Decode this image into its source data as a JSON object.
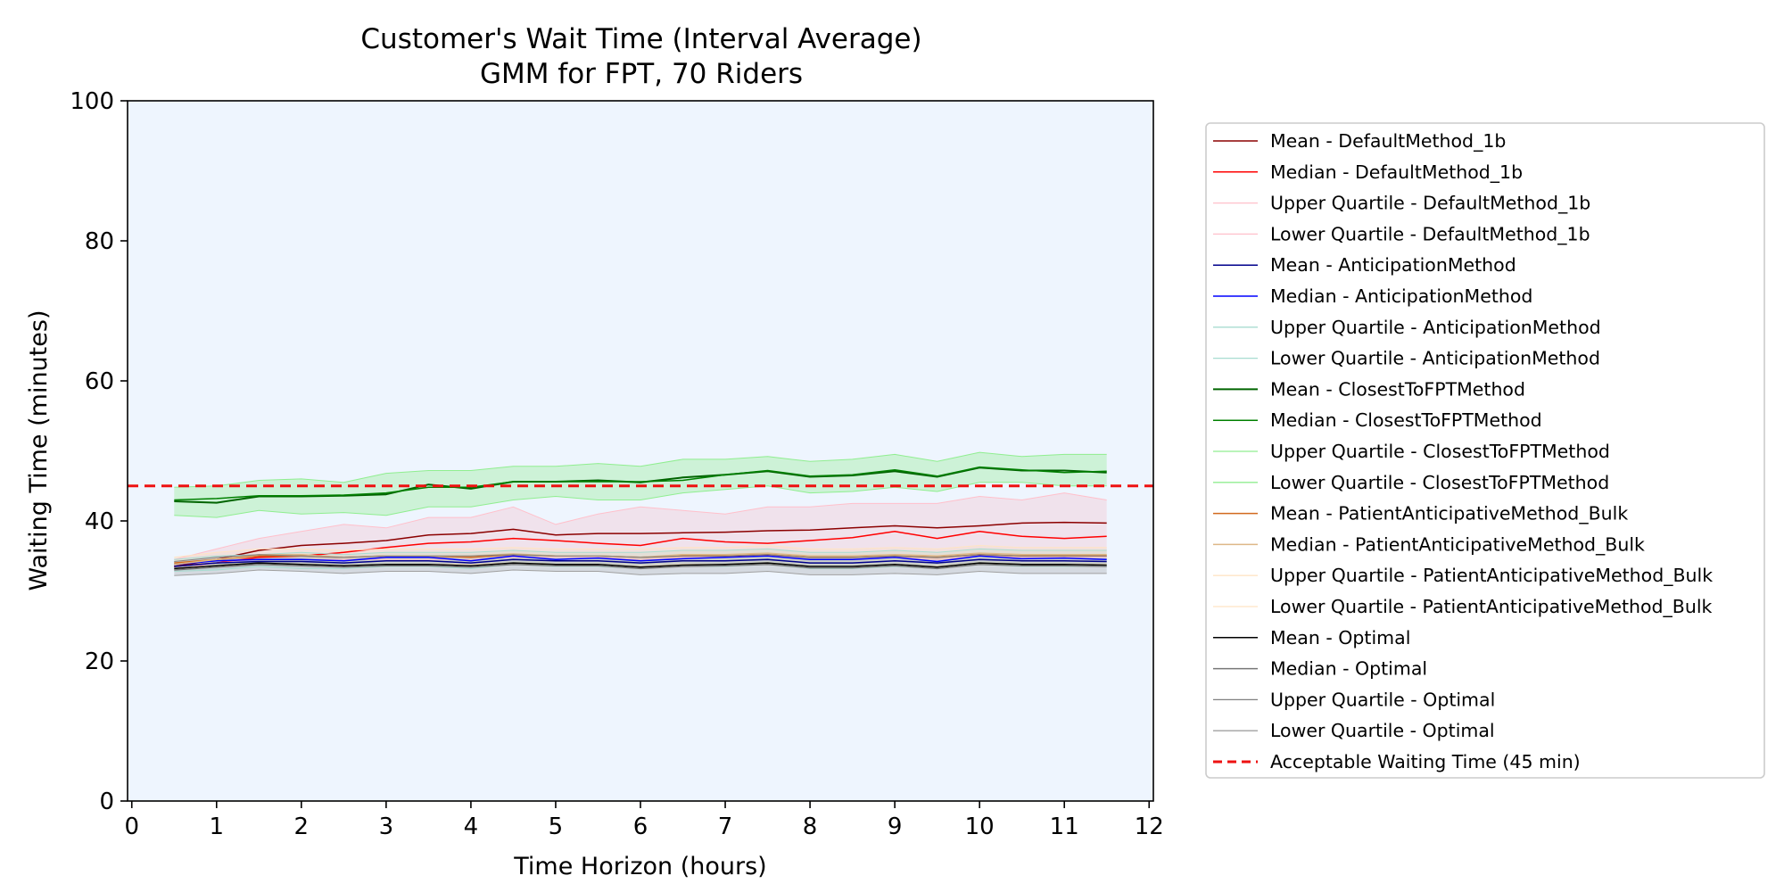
{
  "chart_data": {
    "type": "line",
    "title": "Customer's Wait Time (Interval Average)",
    "subtitle": "GMM for FPT, 70 Riders",
    "xlabel": "Time Horizon (hours)",
    "ylabel": "Waiting Time (minutes)",
    "xlim": [
      -0.05,
      12.05
    ],
    "ylim": [
      0,
      100
    ],
    "xticks": [
      "0",
      "1",
      "2",
      "3",
      "4",
      "5",
      "6",
      "7",
      "8",
      "9",
      "10",
      "11",
      "12"
    ],
    "yticks": [
      "0",
      "20",
      "40",
      "60",
      "80",
      "100"
    ],
    "grid": false,
    "plot_background": "#eef5fe",
    "legend_position": "outside-right",
    "x": [
      0.5,
      1,
      1.5,
      2,
      2.5,
      3,
      3.5,
      4,
      4.5,
      5,
      5.5,
      6,
      6.5,
      7,
      7.5,
      8,
      8.5,
      9,
      9.5,
      10,
      10.5,
      11,
      11.5
    ],
    "bands": [
      {
        "series": "DefaultMethod_1b",
        "color": "#f4b6c2",
        "opacity": 0.3,
        "upper": [
          34.5,
          36,
          37.5,
          38.5,
          39.5,
          39,
          40.5,
          40.5,
          42,
          39.5,
          41,
          42,
          41.5,
          41,
          42,
          42,
          42.5,
          42.5,
          42.5,
          43.5,
          43,
          44,
          43
        ],
        "lower": [
          33,
          34,
          34.5,
          34.5,
          34.5,
          34.5,
          34.5,
          34.5,
          34.8,
          34.8,
          34.8,
          34.5,
          34.8,
          34.8,
          35,
          34.5,
          34.5,
          34.8,
          34.5,
          35,
          34.8,
          34.8,
          34.8
        ]
      },
      {
        "series": "AnticipationMethod",
        "color": "#a8dcd1",
        "opacity": 0.3,
        "upper": [
          34.5,
          35,
          35.2,
          35.5,
          35.2,
          35.5,
          35.5,
          35.5,
          35.8,
          35.5,
          35.5,
          35.5,
          35.8,
          35.8,
          36,
          35.5,
          35.5,
          35.8,
          35.5,
          36,
          35.8,
          35.8,
          35.8
        ],
        "lower": [
          32.8,
          33,
          33.5,
          33.2,
          33.2,
          33.5,
          33.5,
          33.2,
          33.8,
          33.5,
          33.5,
          33.2,
          33.5,
          33.5,
          33.8,
          33.2,
          33.2,
          33.5,
          33.2,
          33.8,
          33.5,
          33.5,
          33.5
        ]
      },
      {
        "series": "ClosestToFPTMethod",
        "color": "#90ee90",
        "opacity": 0.35,
        "upper": [
          44.8,
          45,
          45.8,
          46,
          45.5,
          46.8,
          47.2,
          47.2,
          47.8,
          47.8,
          48.2,
          47.8,
          48.8,
          48.8,
          49.2,
          48.5,
          48.8,
          49.5,
          48.5,
          49.8,
          49.2,
          49.5,
          49.5
        ],
        "lower": [
          40.8,
          40.5,
          41.5,
          41,
          41.2,
          40.8,
          42,
          42,
          43,
          43.5,
          43,
          43,
          44,
          44.5,
          45,
          44,
          44.2,
          44.8,
          44.2,
          45.5,
          45.5,
          45,
          45
        ]
      },
      {
        "series": "PatientAnticipativeMethod_Bulk",
        "color": "#f8d9b8",
        "opacity": 0.3,
        "upper": [
          34.8,
          35.5,
          36,
          36,
          35.8,
          36,
          36,
          36,
          36.2,
          36,
          36,
          36,
          36.2,
          36.2,
          36.5,
          36,
          36,
          36.2,
          36,
          36.5,
          36.2,
          36.2,
          36.2
        ],
        "lower": [
          33,
          33.5,
          34,
          33.8,
          33.5,
          33.8,
          33.8,
          33.8,
          34,
          33.8,
          33.8,
          33.5,
          33.8,
          33.8,
          34,
          33.5,
          33.5,
          33.8,
          33.5,
          34,
          33.8,
          33.8,
          33.8
        ]
      },
      {
        "series": "Optimal",
        "color": "#888888",
        "opacity": 0.25,
        "upper": [
          34.2,
          34.8,
          35.2,
          35,
          34.8,
          35,
          35,
          35,
          35.2,
          35,
          35,
          34.8,
          35,
          35,
          35.2,
          34.8,
          34.8,
          35,
          34.8,
          35.2,
          35,
          35,
          35
        ],
        "lower": [
          32.2,
          32.5,
          33,
          32.8,
          32.5,
          32.8,
          32.8,
          32.5,
          33,
          32.8,
          32.8,
          32.3,
          32.5,
          32.5,
          32.8,
          32.3,
          32.3,
          32.5,
          32.3,
          32.8,
          32.5,
          32.5,
          32.5
        ]
      }
    ],
    "series": [
      {
        "name": "Mean - DefaultMethod_1b",
        "color": "#8b0000",
        "width": 1.5,
        "values": [
          33.5,
          34.5,
          35.8,
          36.5,
          36.8,
          37.2,
          38,
          38.2,
          38.8,
          38,
          38.2,
          38.2,
          38.3,
          38.4,
          38.6,
          38.7,
          39,
          39.3,
          39,
          39.3,
          39.7,
          39.8,
          39.7
        ]
      },
      {
        "name": "Median - DefaultMethod_1b",
        "color": "#ff0000",
        "width": 1.5,
        "values": [
          33.5,
          34,
          34.8,
          35,
          35.5,
          36.2,
          36.8,
          37,
          37.5,
          37.2,
          36.8,
          36.5,
          37.5,
          37,
          36.8,
          37.2,
          37.6,
          38.5,
          37.5,
          38.5,
          37.8,
          37.5,
          37.8
        ]
      },
      {
        "name": "Upper Quartile - DefaultMethod_1b",
        "color": "#ffc0cb",
        "width": 1,
        "values": [
          34.5,
          36,
          37.5,
          38.5,
          39.5,
          39,
          40.5,
          40.5,
          42,
          39.5,
          41,
          42,
          41.5,
          41,
          42,
          42,
          42.5,
          42.5,
          42.5,
          43.5,
          43,
          44,
          43
        ]
      },
      {
        "name": "Lower Quartile - DefaultMethod_1b",
        "color": "#ffc0cb",
        "width": 1,
        "values": [
          33,
          34,
          34.5,
          34.5,
          34.5,
          34.5,
          34.5,
          34.5,
          34.8,
          34.8,
          34.8,
          34.5,
          34.8,
          34.8,
          35,
          34.5,
          34.5,
          34.8,
          34.5,
          35,
          34.8,
          34.8,
          34.8
        ]
      },
      {
        "name": "Mean - AnticipationMethod",
        "color": "#00008b",
        "width": 1.5,
        "values": [
          33.5,
          34,
          34.2,
          34.2,
          34,
          34.3,
          34.3,
          34,
          34.5,
          34.3,
          34.3,
          34,
          34.3,
          34.3,
          34.5,
          34,
          34,
          34.3,
          34,
          34.5,
          34.3,
          34.3,
          34.2
        ]
      },
      {
        "name": "Median - AnticipationMethod",
        "color": "#0000ff",
        "width": 1.5,
        "values": [
          33.8,
          34.3,
          34.5,
          34.5,
          34.3,
          34.8,
          34.8,
          34.3,
          35,
          34.5,
          34.7,
          34.3,
          34.6,
          34.8,
          35,
          34.5,
          34.5,
          34.8,
          34.2,
          35,
          34.6,
          34.7,
          34.5
        ]
      },
      {
        "name": "Upper Quartile - AnticipationMethod",
        "color": "#a8dcd1",
        "width": 1,
        "values": [
          34.5,
          35,
          35.2,
          35.5,
          35.2,
          35.5,
          35.5,
          35.5,
          35.8,
          35.5,
          35.5,
          35.5,
          35.8,
          35.8,
          36,
          35.5,
          35.5,
          35.8,
          35.5,
          36,
          35.8,
          35.8,
          35.8
        ]
      },
      {
        "name": "Lower Quartile - AnticipationMethod",
        "color": "#a8dcd1",
        "width": 1,
        "values": [
          32.8,
          33,
          33.5,
          33.2,
          33.2,
          33.5,
          33.5,
          33.2,
          33.8,
          33.5,
          33.5,
          33.2,
          33.5,
          33.5,
          33.8,
          33.2,
          33.2,
          33.5,
          33.2,
          33.8,
          33.5,
          33.5,
          33.5
        ]
      },
      {
        "name": "Mean - ClosestToFPTMethod",
        "color": "#006400",
        "width": 2,
        "values": [
          42.8,
          42.6,
          43.5,
          43.5,
          43.6,
          43.8,
          45.2,
          44.6,
          45.6,
          45.6,
          45.8,
          45.5,
          46.2,
          46.6,
          47.1,
          46.3,
          46.5,
          47.1,
          46.3,
          47.6,
          47.2,
          47.2,
          46.9
        ]
      },
      {
        "name": "Median - ClosestToFPTMethod",
        "color": "#008000",
        "width": 1.5,
        "values": [
          43,
          43.2,
          43.6,
          43.6,
          43.7,
          44,
          44.8,
          44.8,
          45.6,
          45.6,
          45.6,
          45.6,
          45.8,
          46.6,
          47.2,
          46.4,
          46.6,
          47.3,
          46.4,
          47.7,
          47.3,
          46.9,
          47.1
        ]
      },
      {
        "name": "Upper Quartile - ClosestToFPTMethod",
        "color": "#90ee90",
        "width": 1,
        "values": [
          44.8,
          45,
          45.8,
          46,
          45.5,
          46.8,
          47.2,
          47.2,
          47.8,
          47.8,
          48.2,
          47.8,
          48.8,
          48.8,
          49.2,
          48.5,
          48.8,
          49.5,
          48.5,
          49.8,
          49.2,
          49.5,
          49.5
        ]
      },
      {
        "name": "Lower Quartile - ClosestToFPTMethod",
        "color": "#90ee90",
        "width": 1,
        "values": [
          40.8,
          40.5,
          41.5,
          41,
          41.2,
          40.8,
          42,
          42,
          43,
          43.5,
          43,
          43,
          44,
          44.5,
          45,
          44,
          44.2,
          44.8,
          44.2,
          45.5,
          45.5,
          45,
          45
        ]
      },
      {
        "name": "Mean - PatientAnticipativeMethod_Bulk",
        "color": "#d2691e",
        "width": 1.5,
        "values": [
          34,
          34.5,
          35,
          35,
          34.8,
          35,
          35,
          34.8,
          35.2,
          35,
          35,
          34.8,
          35,
          35,
          35.2,
          34.8,
          34.8,
          35,
          34.8,
          35.2,
          35,
          35,
          35
        ]
      },
      {
        "name": "Median - PatientAnticipativeMethod_Bulk",
        "color": "#deb887",
        "width": 1.5,
        "values": [
          33.8,
          34.5,
          35.2,
          35.2,
          34.8,
          35,
          35,
          35,
          35.3,
          35,
          35,
          34.8,
          35.2,
          35.2,
          35.4,
          35,
          35,
          35.2,
          35,
          35.4,
          35.2,
          35.2,
          35.2
        ]
      },
      {
        "name": "Upper Quartile - PatientAnticipativeMethod_Bulk",
        "color": "#ffe4c4",
        "width": 1,
        "values": [
          34.8,
          35.5,
          36,
          36,
          35.8,
          36,
          36,
          36,
          36.2,
          36,
          36,
          36,
          36.2,
          36.2,
          36.5,
          36,
          36,
          36.2,
          36,
          36.5,
          36.2,
          36.2,
          36.2
        ]
      },
      {
        "name": "Lower Quartile - PatientAnticipativeMethod_Bulk",
        "color": "#ffe4c4",
        "width": 1,
        "values": [
          33,
          33.5,
          34,
          33.8,
          33.5,
          33.8,
          33.8,
          33.8,
          34,
          33.8,
          33.8,
          33.5,
          33.8,
          33.8,
          34,
          33.5,
          33.5,
          33.8,
          33.5,
          34,
          33.8,
          33.8,
          33.8
        ]
      },
      {
        "name": "Mean - Optimal",
        "color": "#000000",
        "width": 1.5,
        "values": [
          33.2,
          33.6,
          34,
          33.8,
          33.6,
          33.8,
          33.8,
          33.6,
          34,
          33.8,
          33.8,
          33.4,
          33.7,
          33.8,
          34,
          33.5,
          33.5,
          33.8,
          33.4,
          34,
          33.8,
          33.8,
          33.7
        ]
      },
      {
        "name": "Median - Optimal",
        "color": "#777777",
        "width": 1.5,
        "values": [
          33,
          33.4,
          33.8,
          33.6,
          33.4,
          33.6,
          33.6,
          33.4,
          33.8,
          33.6,
          33.6,
          33.2,
          33.5,
          33.6,
          33.8,
          33.3,
          33.3,
          33.6,
          33.2,
          33.8,
          33.6,
          33.6,
          33.5
        ]
      },
      {
        "name": "Upper Quartile - Optimal",
        "color": "#808080",
        "width": 1,
        "values": [
          34.2,
          34.8,
          35.2,
          35,
          34.8,
          35,
          35,
          35,
          35.2,
          35,
          35,
          34.8,
          35,
          35,
          35.2,
          34.8,
          34.8,
          35,
          34.8,
          35.2,
          35,
          35,
          35
        ]
      },
      {
        "name": "Lower Quartile - Optimal",
        "color": "#a0a0a0",
        "width": 1,
        "values": [
          32.2,
          32.5,
          33,
          32.8,
          32.5,
          32.8,
          32.8,
          32.5,
          33,
          32.8,
          32.8,
          32.3,
          32.5,
          32.5,
          32.8,
          32.3,
          32.3,
          32.5,
          32.3,
          32.8,
          32.5,
          32.5,
          32.5
        ]
      }
    ],
    "reference_line": {
      "name": "Acceptable Waiting Time (45 min)",
      "y": 45,
      "color": "#ee1111",
      "style": "dashed"
    }
  }
}
